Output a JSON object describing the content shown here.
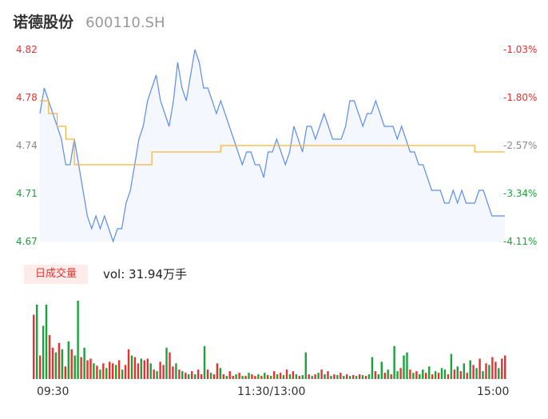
{
  "header": {
    "stock_name": "诺德股份",
    "stock_code": "600110.SH"
  },
  "price_axis": [
    {
      "price": "4.82",
      "pct": "-1.03%",
      "tone": "red"
    },
    {
      "price": "4.78",
      "pct": "-1.80%",
      "tone": "red"
    },
    {
      "price": "4.74",
      "pct": "-2.57%",
      "tone": "grey"
    },
    {
      "price": "4.71",
      "pct": "-3.34%",
      "tone": "green"
    },
    {
      "price": "4.67",
      "pct": "-4.11%",
      "tone": "green"
    }
  ],
  "volume_panel": {
    "tab_label": "日成交量",
    "vol_prefix": "vol: ",
    "vol_value": "31.94万手"
  },
  "time_axis": [
    "09:30",
    "11:30/13:00",
    "15:00"
  ],
  "colors": {
    "price_line": "#5b8def",
    "avg_line": "#f5b335",
    "up": "#e8312f",
    "down": "#1aa33a",
    "fill": "#f4f7fd"
  },
  "chart_data": [
    {
      "type": "line",
      "title": "",
      "ylim": [
        4.67,
        4.82
      ],
      "x_range": [
        "09:30",
        "15:00"
      ],
      "series": [
        {
          "name": "",
          "values": [
            4.77,
            4.79,
            4.78,
            4.77,
            4.76,
            4.75,
            4.73,
            4.73,
            4.75,
            4.73,
            4.71,
            4.69,
            4.68,
            4.69,
            4.68,
            4.69,
            4.68,
            4.67,
            4.68,
            4.68,
            4.7,
            4.71,
            4.73,
            4.75,
            4.76,
            4.78,
            4.79,
            4.8,
            4.78,
            4.77,
            4.76,
            4.78,
            4.81,
            4.79,
            4.78,
            4.8,
            4.82,
            4.81,
            4.79,
            4.79,
            4.78,
            4.77,
            4.78,
            4.77,
            4.76,
            4.75,
            4.74,
            4.73,
            4.74,
            4.74,
            4.73,
            4.73,
            4.72,
            4.74,
            4.74,
            4.75,
            4.74,
            4.73,
            4.74,
            4.76,
            4.75,
            4.74,
            4.76,
            4.76,
            4.75,
            4.76,
            4.77,
            4.76,
            4.75,
            4.75,
            4.75,
            4.76,
            4.78,
            4.78,
            4.77,
            4.76,
            4.77,
            4.77,
            4.78,
            4.77,
            4.76,
            4.76,
            4.76,
            4.75,
            4.76,
            4.75,
            4.74,
            4.74,
            4.73,
            4.73,
            4.72,
            4.71,
            4.71,
            4.71,
            4.7,
            4.7,
            4.71,
            4.7,
            4.71,
            4.7,
            4.7,
            4.7,
            4.71,
            4.71,
            4.7,
            4.69,
            4.69,
            4.69,
            4.69
          ]
        },
        {
          "name": "",
          "values": [
            4.78,
            4.78,
            4.77,
            4.77,
            4.76,
            4.76,
            4.75,
            4.75,
            4.73,
            4.73,
            4.73,
            4.73,
            4.73,
            4.73,
            4.73,
            4.73,
            4.73,
            4.73,
            4.73,
            4.73,
            4.73,
            4.73,
            4.73,
            4.73,
            4.73,
            4.73,
            4.74,
            4.74,
            4.74,
            4.74,
            4.74,
            4.74,
            4.74,
            4.74,
            4.74,
            4.74,
            4.74,
            4.74,
            4.74,
            4.74,
            4.74,
            4.74,
            4.745,
            4.745,
            4.745,
            4.745,
            4.745,
            4.745,
            4.745,
            4.745,
            4.745,
            4.745,
            4.745,
            4.745,
            4.745,
            4.745,
            4.745,
            4.745,
            4.745,
            4.745,
            4.745,
            4.745,
            4.745,
            4.745,
            4.745,
            4.745,
            4.745,
            4.745,
            4.745,
            4.745,
            4.745,
            4.745,
            4.745,
            4.745,
            4.745,
            4.745,
            4.745,
            4.745,
            4.745,
            4.745,
            4.745,
            4.745,
            4.745,
            4.745,
            4.745,
            4.745,
            4.745,
            4.745,
            4.745,
            4.745,
            4.745,
            4.745,
            4.745,
            4.745,
            4.745,
            4.745,
            4.745,
            4.745,
            4.745,
            4.745,
            4.745,
            4.74,
            4.74,
            4.74,
            4.74,
            4.74,
            4.74,
            4.74,
            4.74
          ]
        }
      ]
    },
    {
      "type": "bar",
      "title": "",
      "ylim": [
        0,
        1
      ],
      "values": [
        0.82,
        0.95,
        0.3,
        0.68,
        0.95,
        0.56,
        0.4,
        0.34,
        0.46,
        0.38,
        0.16,
        0.48,
        0.38,
        0.3,
        1.0,
        0.28,
        0.4,
        0.24,
        0.26,
        0.2,
        0.17,
        0.12,
        0.2,
        0.14,
        0.22,
        0.2,
        0.18,
        0.24,
        0.12,
        0.18,
        0.38,
        0.3,
        0.28,
        0.2,
        0.26,
        0.24,
        0.26,
        0.2,
        0.12,
        0.1,
        0.22,
        0.18,
        0.4,
        0.34,
        0.16,
        0.2,
        0.12,
        0.1,
        0.08,
        0.06,
        0.1,
        0.06,
        0.12,
        0.06,
        0.42,
        0.12,
        0.08,
        0.06,
        0.2,
        0.14,
        0.06,
        0.04,
        0.1,
        0.04,
        0.06,
        0.08,
        0.04,
        0.04,
        0.08,
        0.06,
        0.04,
        0.06,
        0.04,
        0.08,
        0.05,
        0.04,
        0.1,
        0.06,
        0.08,
        0.05,
        0.12,
        0.06,
        0.1,
        0.06,
        0.04,
        0.05,
        0.34,
        0.06,
        0.04,
        0.06,
        0.08,
        0.12,
        0.06,
        0.1,
        0.04,
        0.06,
        0.05,
        0.08,
        0.04,
        0.06,
        0.04,
        0.05,
        0.04,
        0.06,
        0.05,
        0.04,
        0.06,
        0.28,
        0.1,
        0.06,
        0.22,
        0.08,
        0.12,
        0.06,
        0.42,
        0.1,
        0.14,
        0.3,
        0.34,
        0.12,
        0.08,
        0.1,
        0.06,
        0.12,
        0.08,
        0.16,
        0.06,
        0.1,
        0.08,
        0.14,
        0.12,
        0.06,
        0.32,
        0.12,
        0.16,
        0.1,
        0.2,
        0.08,
        0.24,
        0.18,
        0.14,
        0.26,
        0.1,
        0.2,
        0.18,
        0.28,
        0.22,
        0.14,
        0.26,
        0.3
      ],
      "direction": [
        "u",
        "d",
        "u",
        "d",
        "d",
        "u",
        "u",
        "d",
        "u",
        "d",
        "u",
        "d",
        "u",
        "d",
        "d",
        "u",
        "d",
        "u",
        "u",
        "d",
        "u",
        "d",
        "u",
        "d",
        "u",
        "u",
        "d",
        "u",
        "d",
        "u",
        "u",
        "d",
        "u",
        "u",
        "d",
        "u",
        "u",
        "d",
        "u",
        "d",
        "u",
        "u",
        "d",
        "u",
        "u",
        "d",
        "u",
        "d",
        "u",
        "d",
        "u",
        "d",
        "u",
        "u",
        "d",
        "u",
        "d",
        "u",
        "u",
        "d",
        "u",
        "d",
        "u",
        "u",
        "d",
        "u",
        "d",
        "u",
        "d",
        "u",
        "u",
        "d",
        "u",
        "d",
        "u",
        "d",
        "u",
        "d",
        "u",
        "d",
        "u",
        "d",
        "u",
        "d",
        "u",
        "d",
        "d",
        "u",
        "d",
        "u",
        "d",
        "u",
        "d",
        "u",
        "d",
        "u",
        "d",
        "u",
        "d",
        "u",
        "d",
        "u",
        "d",
        "u",
        "d",
        "u",
        "d",
        "d",
        "u",
        "d",
        "d",
        "u",
        "d",
        "u",
        "d",
        "d",
        "u",
        "d",
        "d",
        "u",
        "d",
        "u",
        "d",
        "d",
        "u",
        "d",
        "u",
        "d",
        "u",
        "d",
        "d",
        "u",
        "d",
        "u",
        "d",
        "u",
        "d",
        "u",
        "d",
        "u",
        "d",
        "u",
        "d",
        "u",
        "d",
        "u",
        "u",
        "d",
        "u",
        "u"
      ]
    }
  ]
}
